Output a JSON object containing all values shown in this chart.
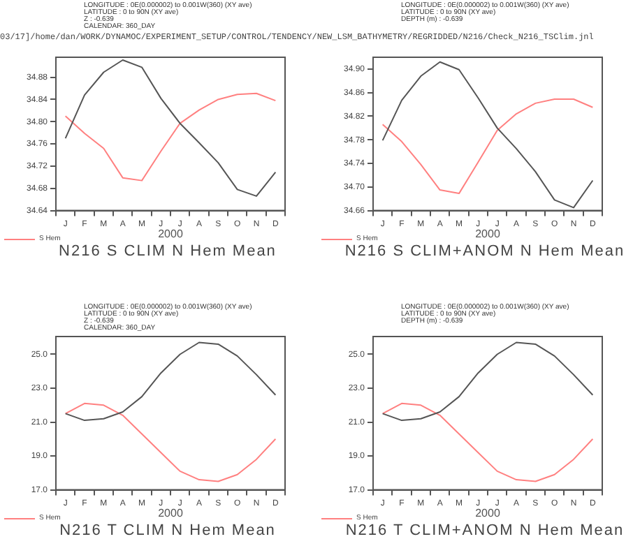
{
  "chart_data": [
    {
      "type": "line",
      "title": "N216 S CLIM N Hem Mean",
      "subtitle": "03/17]/home/dan/WORK/DYNAMOC/EXPERIMENT_SETUP/CONTROL/TENDENCY/NEW_LSM_BATHYMETRY/REGRIDDED/N216/Check_N216_TSClim.jnl",
      "xlabel": "2000",
      "annotations": [
        "LONGITUDE : 0E(0.000002) to 0.001W(360) (XY ave)",
        "LATITUDE : 0 to 90N (XY ave)",
        "Z : -0.639",
        "CALENDAR: 360_DAY"
      ],
      "categories": [
        "J",
        "F",
        "M",
        "A",
        "M",
        "J",
        "J",
        "A",
        "S",
        "O",
        "N",
        "D"
      ],
      "series": [
        {
          "color": "#555555",
          "values": [
            34.77,
            34.848,
            34.889,
            34.911,
            34.898,
            34.842,
            34.797,
            34.762,
            34.726,
            34.678,
            34.666,
            34.709
          ]
        },
        {
          "name": "S Hem",
          "color": "#ff8080",
          "values": [
            34.81,
            34.779,
            34.752,
            34.699,
            34.694,
            34.747,
            34.797,
            34.821,
            34.84,
            34.849,
            34.851,
            34.838
          ]
        }
      ],
      "ylim": [
        34.64,
        34.916
      ],
      "yticks": [
        34.64,
        34.68,
        34.72,
        34.76,
        {
          "value": 34.8,
          "label": "34.80"
        },
        34.84,
        34.88
      ],
      "grid": false,
      "legend": "bottom left",
      "marker": "none"
    },
    {
      "type": "line",
      "title": "N216 S CLIM+ANOM N Hem Mean",
      "xlabel": "2000",
      "annotations": [
        "LONGITUDE : 0E(0.000002) to 0.001W(360) (XY ave)",
        "LATITUDE : 0 to 90N (XY ave)",
        "DEPTH (m) : -0.639"
      ],
      "categories": [
        "J",
        "F",
        "M",
        "A",
        "M",
        "J",
        "J",
        "A",
        "S",
        "O",
        "N",
        "D"
      ],
      "series": [
        {
          "color": "#555555",
          "values": [
            34.779,
            34.847,
            34.888,
            34.912,
            34.899,
            34.851,
            34.8,
            34.765,
            34.726,
            34.678,
            34.665,
            34.711
          ]
        },
        {
          "name": "S Hem",
          "color": "#ff8080",
          "values": [
            34.806,
            34.777,
            34.738,
            34.695,
            34.689,
            34.742,
            34.796,
            34.824,
            34.842,
            34.849,
            34.849,
            34.835
          ]
        }
      ],
      "ylim": [
        34.66,
        34.92
      ],
      "yticks": [
        34.66,
        {
          "value": 34.7,
          "label": "34.70"
        },
        34.74,
        34.78,
        34.82,
        34.86,
        {
          "value": 34.9,
          "label": "34.90"
        }
      ],
      "grid": false,
      "legend": "bottom left",
      "marker": "none"
    },
    {
      "type": "line",
      "title": "N216 T CLIM N Hem Mean",
      "xlabel": "2000",
      "annotations": [
        "LONGITUDE : 0E(0.000002) to 0.001W(360) (XY ave)",
        "LATITUDE : 0 to 90N (XY ave)",
        "Z : -0.639",
        "CALENDAR: 360_DAY"
      ],
      "categories": [
        "J",
        "F",
        "M",
        "A",
        "M",
        "J",
        "J",
        "A",
        "S",
        "O",
        "N",
        "D"
      ],
      "series": [
        {
          "color": "#555555",
          "values": [
            21.5,
            21.1,
            21.2,
            21.6,
            22.5,
            23.9,
            25.0,
            25.7,
            25.6,
            24.9,
            23.8,
            22.6
          ]
        },
        {
          "name": "S Hem",
          "color": "#ff8080",
          "values": [
            21.5,
            22.1,
            22.0,
            21.4,
            20.3,
            19.2,
            18.1,
            17.6,
            17.5,
            17.9,
            18.8,
            20.0
          ]
        }
      ],
      "ylim": [
        17,
        26.05
      ],
      "yticks": [
        {
          "value": 17,
          "label": "17.0"
        },
        {
          "value": 19,
          "label": "19.0"
        },
        {
          "value": 21,
          "label": "21.0"
        },
        {
          "value": 23,
          "label": "23.0"
        },
        {
          "value": 25,
          "label": "25.0"
        }
      ],
      "grid": false,
      "legend": "bottom left",
      "marker": "none"
    },
    {
      "type": "line",
      "title": "N216 T CLIM+ANOM N Hem Mean",
      "xlabel": "2000",
      "annotations": [
        "LONGITUDE : 0E(0.000002) to 0.001W(360) (XY ave)",
        "LATITUDE : 0 to 90N (XY ave)",
        "DEPTH (m) : -0.639"
      ],
      "categories": [
        "J",
        "F",
        "M",
        "A",
        "M",
        "J",
        "J",
        "A",
        "S",
        "O",
        "N",
        "D"
      ],
      "series": [
        {
          "color": "#555555",
          "values": [
            21.5,
            21.1,
            21.2,
            21.6,
            22.5,
            23.9,
            25.0,
            25.7,
            25.6,
            24.9,
            23.8,
            22.6
          ]
        },
        {
          "name": "S Hem",
          "color": "#ff8080",
          "values": [
            21.5,
            22.1,
            22.0,
            21.4,
            20.3,
            19.2,
            18.1,
            17.6,
            17.5,
            17.9,
            18.8,
            20.0
          ]
        }
      ],
      "ylim": [
        17,
        26.05
      ],
      "yticks": [
        {
          "value": 17,
          "label": "17.0"
        },
        {
          "value": 19,
          "label": "19.0"
        },
        {
          "value": 21,
          "label": "21.0"
        },
        {
          "value": 23,
          "label": "23.0"
        },
        {
          "value": 25,
          "label": "25.0"
        }
      ],
      "grid": false,
      "legend": "bottom left",
      "marker": "none"
    }
  ]
}
